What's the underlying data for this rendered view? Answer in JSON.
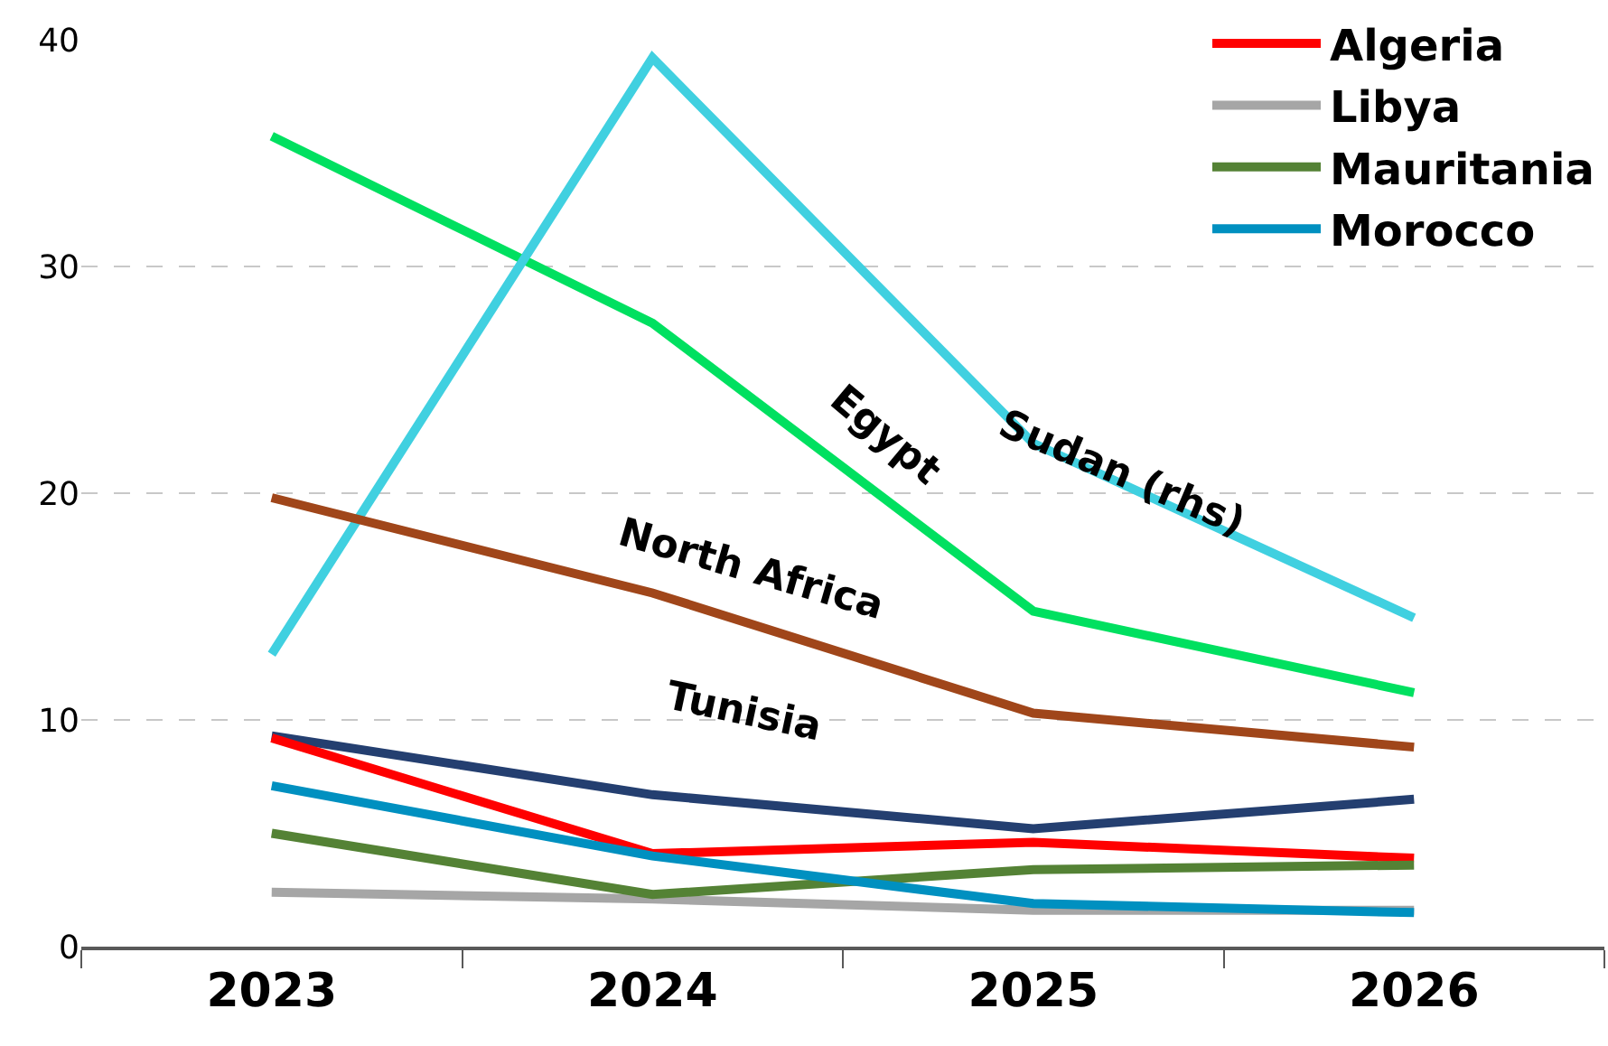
{
  "chart_data": {
    "type": "line",
    "x": [
      2023,
      2024,
      2025,
      2026
    ],
    "xlim": [
      2022.5,
      2026.5
    ],
    "xticks": [
      2023,
      2024,
      2025,
      2026
    ],
    "ylim": [
      0,
      40
    ],
    "yticks": [
      0,
      10,
      20,
      30,
      40
    ],
    "grid": "y",
    "legend": "top right",
    "series": [
      {
        "color": "#00e060",
        "values": [
          35.75,
          27.5,
          14.8,
          11.2
        ]
      },
      {
        "color": "#40d0e0",
        "values": [
          12.9,
          39.2,
          22.2,
          14.5
        ]
      },
      {
        "color": "#a0461a",
        "values": [
          19.8,
          15.6,
          10.3,
          8.8
        ]
      },
      {
        "color": "#243f70",
        "values": [
          9.3,
          6.7,
          5.2,
          6.5
        ]
      },
      {
        "name": "Algeria",
        "color": "#ff0000",
        "values": [
          9.2,
          4.1,
          4.6,
          3.9
        ]
      },
      {
        "name": "Libya",
        "color": "#a6a6a6",
        "values": [
          2.4,
          2.1,
          1.6,
          1.6
        ]
      },
      {
        "name": "Mauritania",
        "color": "#548235",
        "values": [
          5.0,
          2.3,
          3.4,
          3.6
        ]
      },
      {
        "name": "Morocco",
        "color": "#0090c0",
        "values": [
          7.1,
          4.0,
          1.9,
          1.5
        ]
      }
    ],
    "annotations": [
      "Egypt",
      "Sudan (rhs)",
      "North Africa",
      "Tunisia"
    ]
  }
}
